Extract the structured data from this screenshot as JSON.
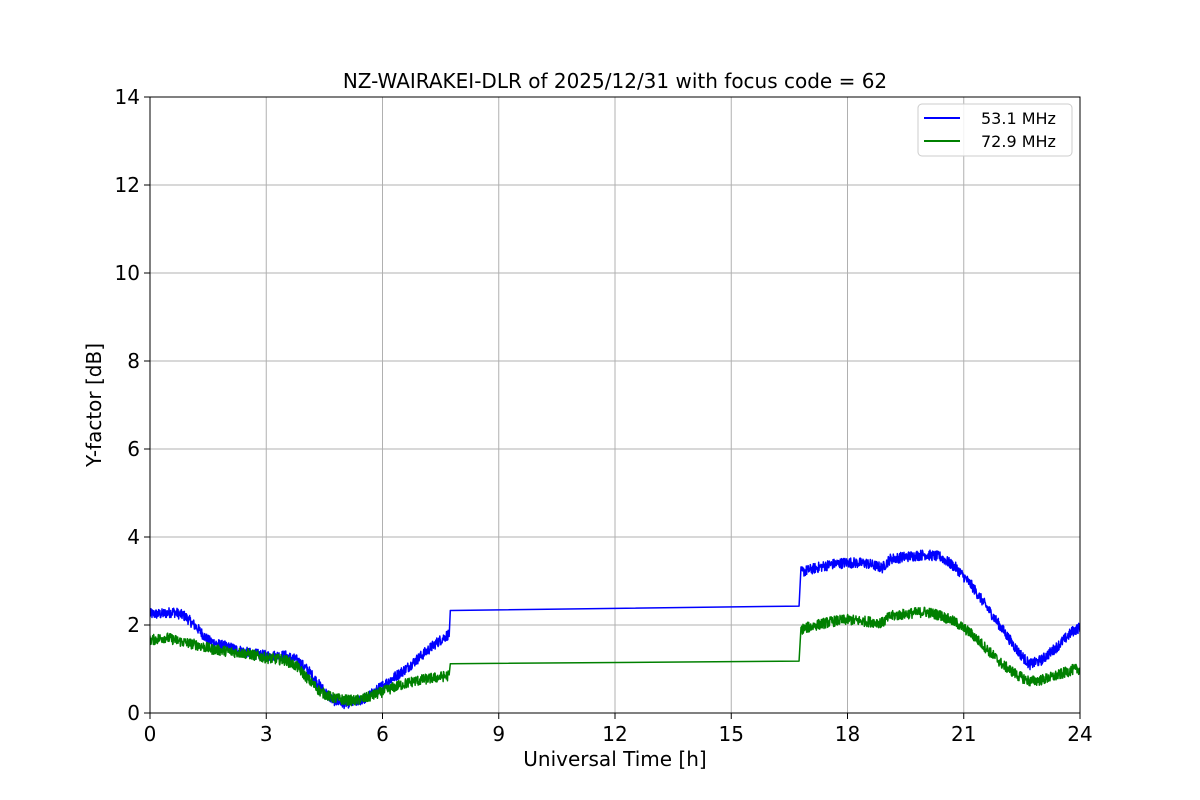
{
  "chart_data": {
    "type": "line",
    "title": "NZ-WAIRAKEI-DLR of 2025/12/31 with focus code = 62",
    "xlabel": "Universal Time [h]",
    "ylabel": "Y-factor [dB]",
    "xlim": [
      0,
      24
    ],
    "ylim": [
      0,
      14
    ],
    "xticks": [
      0,
      3,
      6,
      9,
      12,
      15,
      18,
      21,
      24
    ],
    "yticks": [
      0,
      2,
      4,
      6,
      8,
      10,
      12,
      14
    ],
    "grid": true,
    "legend_position": "top-right",
    "series": [
      {
        "name": "53.1 MHz",
        "color": "#0000ff",
        "noise_amplitude": 0.12,
        "points": [
          [
            0,
            2.25
          ],
          [
            0.3,
            2.25
          ],
          [
            0.6,
            2.3
          ],
          [
            0.9,
            2.2
          ],
          [
            1.2,
            1.95
          ],
          [
            1.5,
            1.65
          ],
          [
            1.8,
            1.55
          ],
          [
            2.2,
            1.45
          ],
          [
            2.6,
            1.35
          ],
          [
            3.0,
            1.3
          ],
          [
            3.5,
            1.3
          ],
          [
            3.8,
            1.2
          ],
          [
            4.1,
            0.95
          ],
          [
            4.4,
            0.6
          ],
          [
            4.7,
            0.3
          ],
          [
            5.0,
            0.22
          ],
          [
            5.3,
            0.25
          ],
          [
            5.6,
            0.35
          ],
          [
            5.9,
            0.55
          ],
          [
            6.2,
            0.75
          ],
          [
            6.6,
            1.0
          ],
          [
            7.0,
            1.3
          ],
          [
            7.4,
            1.6
          ],
          [
            7.72,
            1.8
          ]
        ],
        "gap_points": [
          [
            7.75,
            2.33
          ],
          [
            16.75,
            2.43
          ]
        ],
        "points_after": [
          [
            16.8,
            3.2
          ],
          [
            17.2,
            3.3
          ],
          [
            17.6,
            3.38
          ],
          [
            18.0,
            3.42
          ],
          [
            18.5,
            3.4
          ],
          [
            18.9,
            3.3
          ],
          [
            19.1,
            3.5
          ],
          [
            19.5,
            3.55
          ],
          [
            20.0,
            3.6
          ],
          [
            20.4,
            3.55
          ],
          [
            20.8,
            3.3
          ],
          [
            21.2,
            2.9
          ],
          [
            21.6,
            2.4
          ],
          [
            22.0,
            1.9
          ],
          [
            22.4,
            1.4
          ],
          [
            22.7,
            1.1
          ],
          [
            23.0,
            1.2
          ],
          [
            23.4,
            1.5
          ],
          [
            23.8,
            1.85
          ],
          [
            24.0,
            1.95
          ]
        ]
      },
      {
        "name": "72.9 MHz",
        "color": "#008000",
        "noise_amplitude": 0.12,
        "points": [
          [
            0,
            1.65
          ],
          [
            0.4,
            1.72
          ],
          [
            0.8,
            1.62
          ],
          [
            1.2,
            1.55
          ],
          [
            1.6,
            1.45
          ],
          [
            2.0,
            1.4
          ],
          [
            2.5,
            1.35
          ],
          [
            3.0,
            1.25
          ],
          [
            3.5,
            1.2
          ],
          [
            3.8,
            1.05
          ],
          [
            4.1,
            0.75
          ],
          [
            4.4,
            0.48
          ],
          [
            4.7,
            0.35
          ],
          [
            5.0,
            0.3
          ],
          [
            5.3,
            0.28
          ],
          [
            5.6,
            0.35
          ],
          [
            6.0,
            0.48
          ],
          [
            6.4,
            0.62
          ],
          [
            6.8,
            0.72
          ],
          [
            7.2,
            0.78
          ],
          [
            7.72,
            0.85
          ]
        ],
        "gap_points": [
          [
            7.75,
            1.12
          ],
          [
            16.75,
            1.18
          ]
        ],
        "points_after": [
          [
            16.8,
            1.9
          ],
          [
            17.2,
            2.0
          ],
          [
            17.6,
            2.08
          ],
          [
            18.0,
            2.12
          ],
          [
            18.5,
            2.08
          ],
          [
            18.9,
            2.05
          ],
          [
            19.1,
            2.2
          ],
          [
            19.5,
            2.25
          ],
          [
            20.0,
            2.3
          ],
          [
            20.4,
            2.22
          ],
          [
            20.8,
            2.05
          ],
          [
            21.2,
            1.8
          ],
          [
            21.6,
            1.45
          ],
          [
            22.0,
            1.1
          ],
          [
            22.4,
            0.85
          ],
          [
            22.7,
            0.72
          ],
          [
            23.0,
            0.75
          ],
          [
            23.4,
            0.85
          ],
          [
            23.8,
            0.98
          ],
          [
            24.0,
            1.0
          ]
        ]
      }
    ]
  }
}
